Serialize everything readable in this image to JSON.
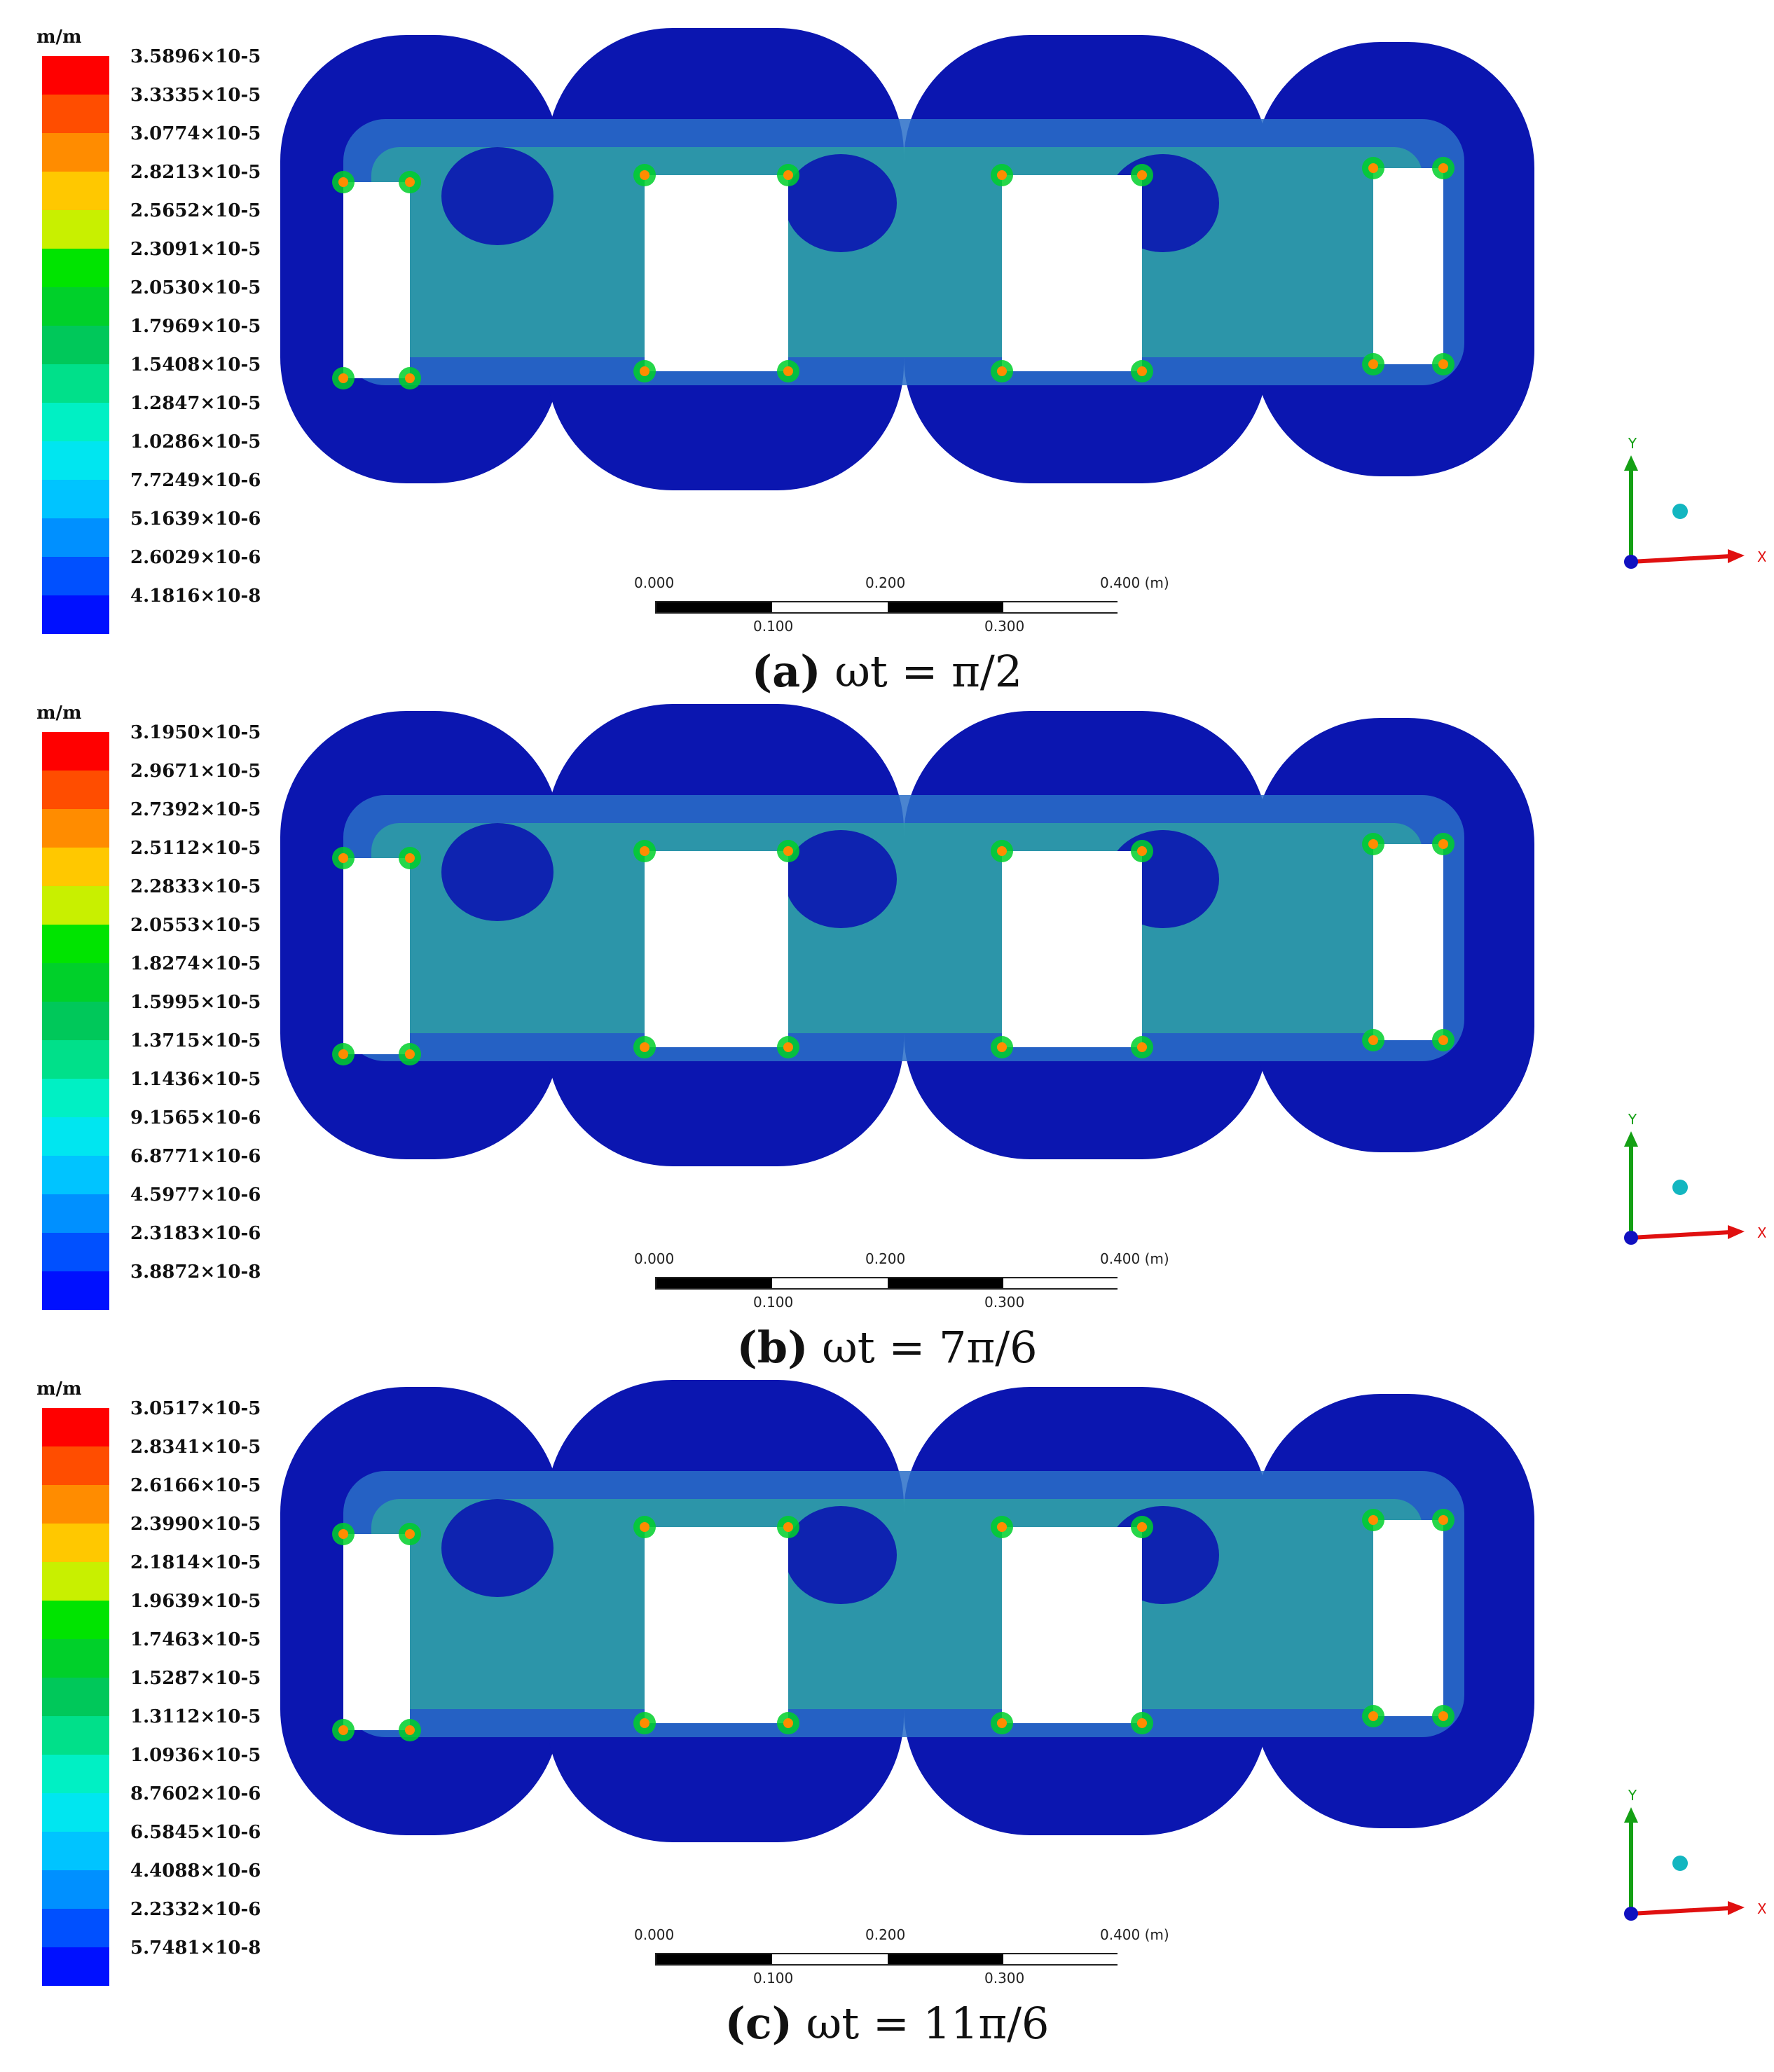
{
  "colors": {
    "ramp": [
      "#ff0000",
      "#ff4d00",
      "#ff8c00",
      "#ffc800",
      "#c8f000",
      "#00e400",
      "#00d02a",
      "#00c85a",
      "#00e08a",
      "#00f0c4",
      "#00e6f0",
      "#00c4ff",
      "#0090ff",
      "#0050ff",
      "#0010ff"
    ],
    "body": "#0b16b0",
    "mid": "#2a6ec8",
    "teal": "#2fa7a0",
    "hole": "#ffffff"
  },
  "panels": [
    {
      "id": "a",
      "unit": "m/m",
      "legend": [
        "3.5896×10-5",
        "3.3335×10-5",
        "3.0774×10-5",
        "2.8213×10-5",
        "2.5652×10-5",
        "2.3091×10-5",
        "2.0530×10-5",
        "1.7969×10-5",
        "1.5408×10-5",
        "1.2847×10-5",
        "1.0286×10-5",
        "7.7249×10-6",
        "5.1639×10-6",
        "2.6029×10-6",
        "4.1816×10-8"
      ],
      "caption_letter": "(a)",
      "caption_text": "ωt = π/2"
    },
    {
      "id": "b",
      "unit": "m/m",
      "legend": [
        "3.1950×10-5",
        "2.9671×10-5",
        "2.7392×10-5",
        "2.5112×10-5",
        "2.2833×10-5",
        "2.0553×10-5",
        "1.8274×10-5",
        "1.5995×10-5",
        "1.3715×10-5",
        "1.1436×10-5",
        "9.1565×10-6",
        "6.8771×10-6",
        "4.5977×10-6",
        "2.3183×10-6",
        "3.8872×10-8"
      ],
      "caption_letter": "(b)",
      "caption_text": "ωt = 7π/6"
    },
    {
      "id": "c",
      "unit": "m/m",
      "legend": [
        "3.0517×10-5",
        "2.8341×10-5",
        "2.6166×10-5",
        "2.3990×10-5",
        "2.1814×10-5",
        "1.9639×10-5",
        "1.7463×10-5",
        "1.5287×10-5",
        "1.3112×10-5",
        "1.0936×10-5",
        "8.7602×10-6",
        "6.5845×10-6",
        "4.4088×10-6",
        "2.2332×10-6",
        "5.7481×10-8"
      ],
      "caption_letter": "(c)",
      "caption_text": "ωt = 11π/6"
    }
  ],
  "scale": {
    "top_labels": [
      "0.000",
      "0.200",
      "0.400 (m)"
    ],
    "bottom_labels": [
      "0.100",
      "0.300"
    ]
  },
  "axes": {
    "y": "Y",
    "x": "X"
  }
}
